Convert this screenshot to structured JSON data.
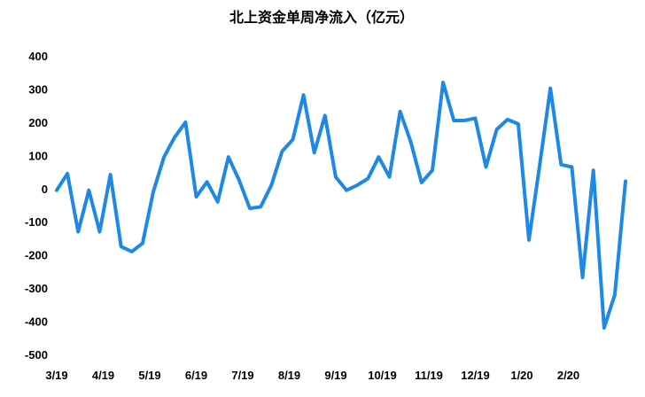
{
  "chart_data": {
    "type": "line",
    "title": "北上资金单周净流入（亿元）",
    "xlabel": "",
    "ylabel": "",
    "ylim": [
      -500,
      400
    ],
    "yticks": [
      400,
      300,
      200,
      100,
      0,
      -100,
      -200,
      -300,
      -400,
      -500
    ],
    "xticks": [
      "3/19",
      "4/19",
      "5/19",
      "6/19",
      "7/19",
      "8/19",
      "9/19",
      "10/19",
      "11/19",
      "12/19",
      "1/20",
      "2/20"
    ],
    "grid": false,
    "legend": "none",
    "series_color": "#1E88E5",
    "series": [
      {
        "values": [
          -5,
          45,
          -130,
          -5,
          -130,
          42,
          -175,
          -190,
          -165,
          -10,
          95,
          155,
          200,
          -25,
          20,
          -40,
          95,
          25,
          -60,
          -55,
          10,
          112,
          148,
          282,
          108,
          220,
          35,
          -5,
          10,
          30,
          95,
          35,
          232,
          140,
          18,
          55,
          320,
          205,
          205,
          212,
          65,
          178,
          208,
          195,
          -155,
          70,
          302,
          72,
          65,
          -268,
          55,
          -420,
          -320,
          22
        ]
      }
    ]
  }
}
